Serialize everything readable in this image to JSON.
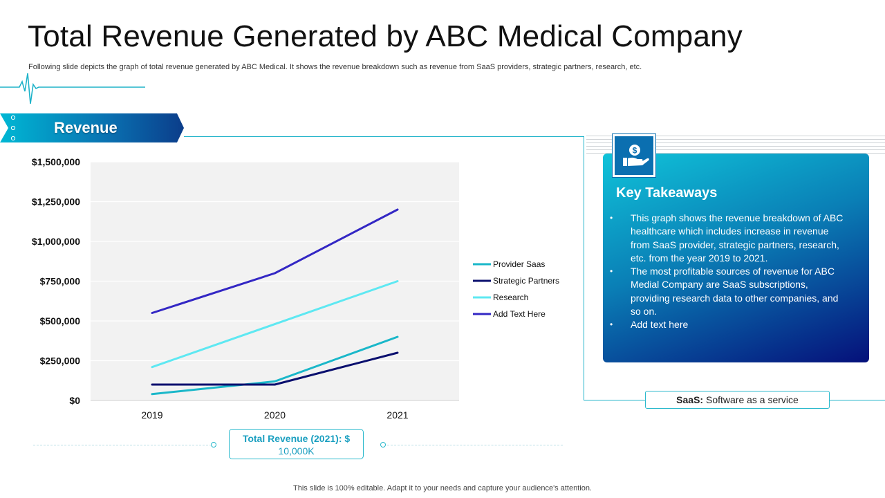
{
  "title": "Total Revenue Generated by ABC Medical Company",
  "subtitle": "Following slide depicts the graph of total revenue generated  by ABC Medical. It shows the revenue  breakdown such as revenue from SaaS providers, strategic partners, research, etc.",
  "section_label": "Revenue",
  "total_revenue": {
    "label": "Total Revenue (2021)",
    "value_prefix": ": $",
    "value": "10,000K"
  },
  "key_takeaways": {
    "title": "Key Takeaways",
    "icon": "money-hand-icon",
    "items": [
      "This graph shows the revenue breakdown of ABC healthcare which includes increase in revenue from SaaS provider, strategic partners, research, etc. from the year 2019 to 2021.",
      "The most profitable sources of revenue for ABC Medial Company are SaaS subscriptions, providing research data to other companies, and so on.",
      "Add text here"
    ]
  },
  "saas_note": {
    "term": "SaaS:",
    "definition": " Software as a service"
  },
  "footer": "This slide is 100% editable. Adapt it to your needs and capture your audience's attention.",
  "colors": {
    "accent": "#1fb3c9",
    "dark_blue": "#05107a"
  },
  "chart_data": {
    "type": "line",
    "categories": [
      "2019",
      "2020",
      "2021"
    ],
    "series": [
      {
        "name": "Provider Saas",
        "values": [
          40000,
          120000,
          400000
        ],
        "color": "#1ab7c9"
      },
      {
        "name": "Strategic Partners",
        "values": [
          100000,
          100000,
          300000
        ],
        "color": "#0a0f6e"
      },
      {
        "name": "Research",
        "values": [
          210000,
          480000,
          750000
        ],
        "color": "#5ee8f2"
      },
      {
        "name": "Add Text Here",
        "values": [
          550000,
          800000,
          1200000
        ],
        "color": "#3327c4"
      }
    ],
    "yticks": [
      "$0",
      "$250,000",
      "$500,000",
      "$750,000",
      "$1,000,000",
      "$1,250,000",
      "$1,500,000"
    ],
    "ylim": [
      0,
      1500000
    ],
    "legend": "right",
    "grid": true
  }
}
